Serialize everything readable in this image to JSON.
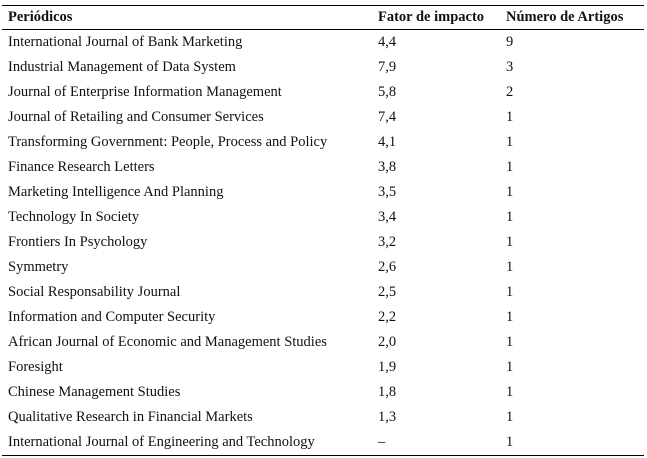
{
  "table": {
    "header": [
      "Periódicos",
      "Fator de impacto",
      "Número de Artigos"
    ],
    "rows": [
      [
        "International Journal of Bank Marketing",
        "4,4",
        "9"
      ],
      [
        "Industrial Management of Data System",
        "7,9",
        "3"
      ],
      [
        "Journal of Enterprise Information Management",
        "5,8",
        "2"
      ],
      [
        "Journal of Retailing and Consumer Services",
        "7,4",
        "1"
      ],
      [
        "Transforming Government: People, Process and Policy",
        "4,1",
        "1"
      ],
      [
        "Finance Research Letters",
        "3,8",
        "1"
      ],
      [
        "Marketing Intelligence And Planning",
        "3,5",
        "1"
      ],
      [
        "Technology In Society",
        "3,4",
        "1"
      ],
      [
        "Frontiers In Psychology",
        "3,2",
        "1"
      ],
      [
        "Symmetry",
        "2,6",
        "1"
      ],
      [
        "Social Responsability Journal",
        "2,5",
        "1"
      ],
      [
        "Information and Computer Security",
        "2,2",
        "1"
      ],
      [
        "African Journal of Economic and Management Studies",
        "2,0",
        "1"
      ],
      [
        "Foresight",
        "1,9",
        "1"
      ],
      [
        "Chinese Management Studies",
        "1,8",
        "1"
      ],
      [
        "Qualitative Research in Financial Markets",
        "1,3",
        "1"
      ],
      [
        "International Journal of Engineering and Technology",
        "–",
        "1"
      ]
    ]
  }
}
